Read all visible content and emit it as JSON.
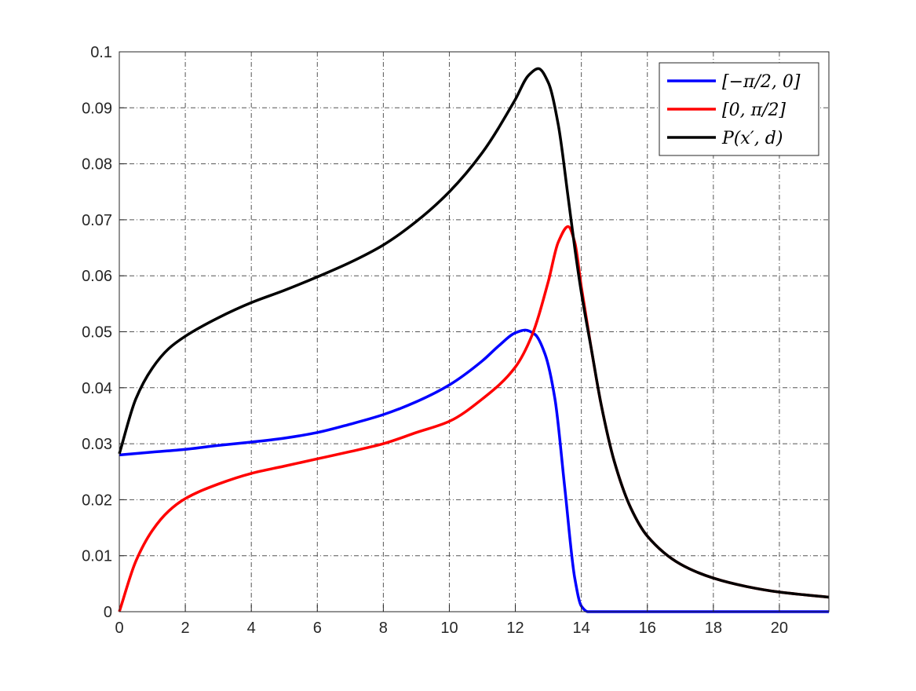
{
  "chart_data": {
    "type": "line",
    "title": "",
    "xlabel": "",
    "ylabel": "",
    "xlim": [
      0,
      21.5
    ],
    "ylim": [
      0,
      0.1
    ],
    "xticks": [
      0,
      2,
      4,
      6,
      8,
      10,
      12,
      14,
      16,
      18,
      20
    ],
    "yticks": [
      0,
      0.01,
      0.02,
      0.03,
      0.04,
      0.05,
      0.06,
      0.07,
      0.08,
      0.09,
      0.1
    ],
    "xtick_labels": [
      "0",
      "2",
      "4",
      "6",
      "8",
      "10",
      "12",
      "14",
      "16",
      "18",
      "20"
    ],
    "ytick_labels": [
      "0",
      "0.01",
      "0.02",
      "0.03",
      "0.04",
      "0.05",
      "0.06",
      "0.07",
      "0.08",
      "0.09",
      "0.1"
    ],
    "grid": true,
    "legend_position": "top-right",
    "series": [
      {
        "name": "[−π/2, 0]",
        "color": "#0000ff",
        "x": [
          0,
          1,
          2,
          3,
          4,
          5,
          6,
          7,
          8,
          9,
          10,
          11,
          11.5,
          12,
          12.3,
          12.6,
          12.9,
          13.2,
          13.5,
          13.8,
          14.0,
          14.2,
          15,
          16,
          18,
          20,
          21.5
        ],
        "y": [
          0.028,
          0.0285,
          0.029,
          0.0297,
          0.0303,
          0.031,
          0.032,
          0.0335,
          0.0352,
          0.0375,
          0.0405,
          0.0448,
          0.0475,
          0.0498,
          0.0503,
          0.0495,
          0.046,
          0.038,
          0.022,
          0.006,
          0.001,
          0.0,
          0.0,
          0.0,
          0.0,
          0.0,
          0.0
        ]
      },
      {
        "name": "[0, π/2]",
        "color": "#ff0000",
        "x": [
          0,
          0.5,
          1,
          1.5,
          2,
          3,
          4,
          5,
          6,
          7,
          8,
          9,
          10,
          11,
          12,
          12.5,
          13,
          13.3,
          13.6,
          13.8,
          14.0,
          14.3,
          14.6,
          15,
          15.5,
          16,
          17,
          18,
          19,
          20,
          21.5
        ],
        "y": [
          0.0,
          0.009,
          0.0145,
          0.018,
          0.0202,
          0.0228,
          0.0247,
          0.026,
          0.0273,
          0.0286,
          0.03,
          0.032,
          0.034,
          0.038,
          0.0437,
          0.0493,
          0.059,
          0.066,
          0.0688,
          0.066,
          0.058,
          0.047,
          0.037,
          0.0268,
          0.0185,
          0.0135,
          0.0085,
          0.006,
          0.0045,
          0.0035,
          0.0026
        ]
      },
      {
        "name": "P(x′, d)",
        "color": "#000000",
        "x": [
          0,
          0.5,
          1,
          1.5,
          2,
          3,
          4,
          5,
          6,
          7,
          8,
          9,
          10,
          11,
          12,
          12.4,
          12.7,
          13.0,
          13.3,
          13.6,
          13.8,
          14.0,
          14.3,
          14.6,
          15,
          15.5,
          16,
          17,
          18,
          19,
          20,
          21.5
        ],
        "y": [
          0.0282,
          0.038,
          0.0435,
          0.047,
          0.0492,
          0.0525,
          0.0552,
          0.0574,
          0.0598,
          0.0624,
          0.0655,
          0.0697,
          0.075,
          0.082,
          0.0915,
          0.0958,
          0.097,
          0.0945,
          0.087,
          0.074,
          0.065,
          0.057,
          0.047,
          0.037,
          0.0268,
          0.0185,
          0.0135,
          0.0085,
          0.006,
          0.0045,
          0.0035,
          0.0026
        ]
      }
    ]
  }
}
